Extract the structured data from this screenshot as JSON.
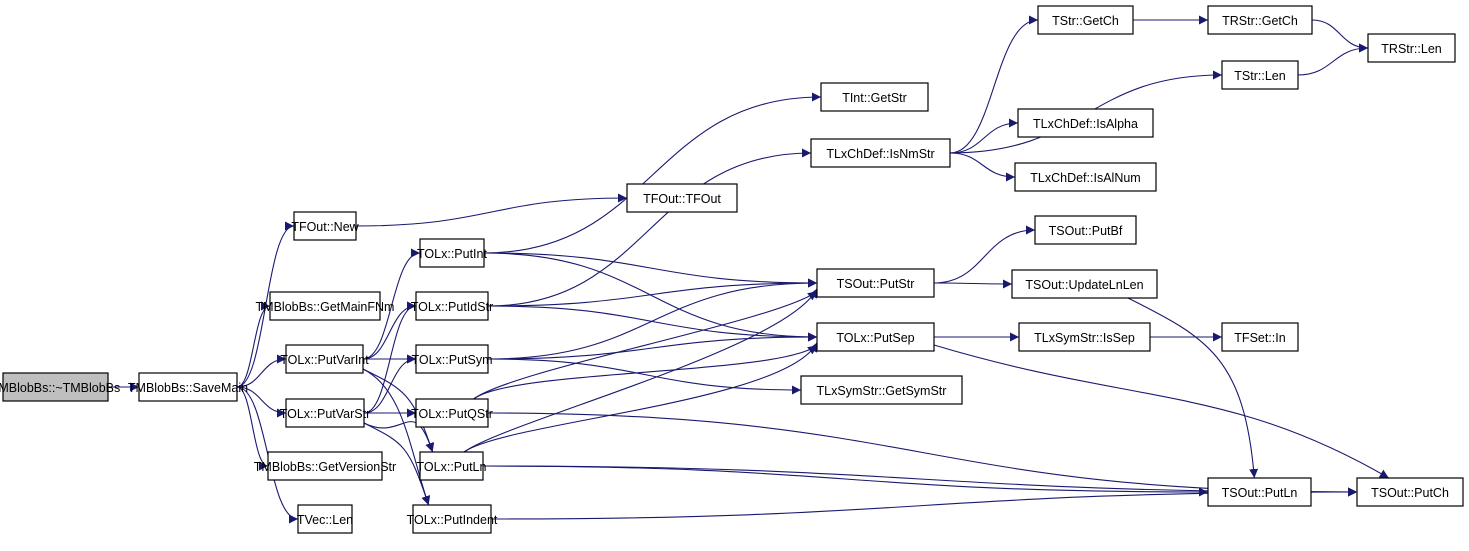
{
  "colors": {
    "edge": "#191970",
    "root_fill": "#bfbfbf",
    "node_fill": "#ffffff"
  },
  "nodes": [
    {
      "id": "n0",
      "label": "TMBlobBs::~TMBlobBs",
      "root": true
    },
    {
      "id": "n1",
      "label": "TMBlobBs::SaveMain"
    },
    {
      "id": "n2",
      "label": "TFOut::New"
    },
    {
      "id": "n3",
      "label": "TMBlobBs::GetMainFNm"
    },
    {
      "id": "n4",
      "label": "TOLx::PutVarInt"
    },
    {
      "id": "n5",
      "label": "TOLx::PutVarStr"
    },
    {
      "id": "n6",
      "label": "TMBlobBs::GetVersionStr"
    },
    {
      "id": "n7",
      "label": "TVec::Len"
    },
    {
      "id": "n8",
      "label": "TFOut::TFOut"
    },
    {
      "id": "n9",
      "label": "TOLx::PutInt"
    },
    {
      "id": "n10",
      "label": "TOLx::PutIdStr"
    },
    {
      "id": "n11",
      "label": "TOLx::PutSym"
    },
    {
      "id": "n12",
      "label": "TOLx::PutQStr"
    },
    {
      "id": "n13",
      "label": "TOLx::PutLn"
    },
    {
      "id": "n14",
      "label": "TOLx::PutIndent"
    },
    {
      "id": "n15",
      "label": "TInt::GetStr"
    },
    {
      "id": "n16",
      "label": "TLxChDef::IsNmStr"
    },
    {
      "id": "n17",
      "label": "TStr::GetCh"
    },
    {
      "id": "n18",
      "label": "TRStr::GetCh"
    },
    {
      "id": "n19",
      "label": "TRStr::Len"
    },
    {
      "id": "n20",
      "label": "TStr::Len"
    },
    {
      "id": "n21",
      "label": "TLxChDef::IsAlpha"
    },
    {
      "id": "n22",
      "label": "TLxChDef::IsAlNum"
    },
    {
      "id": "n23",
      "label": "TSOut::PutBf"
    },
    {
      "id": "n24",
      "label": "TSOut::PutStr"
    },
    {
      "id": "n25",
      "label": "TSOut::UpdateLnLen"
    },
    {
      "id": "n26",
      "label": "TOLx::PutSep"
    },
    {
      "id": "n27",
      "label": "TLxSymStr::IsSep"
    },
    {
      "id": "n28",
      "label": "TFSet::In"
    },
    {
      "id": "n29",
      "label": "TLxSymStr::GetSymStr"
    },
    {
      "id": "n30",
      "label": "TSOut::PutLn"
    },
    {
      "id": "n31",
      "label": "TSOut::PutCh"
    }
  ],
  "edges": [
    [
      "n0",
      "n1"
    ],
    [
      "n1",
      "n2"
    ],
    [
      "n1",
      "n3"
    ],
    [
      "n1",
      "n4"
    ],
    [
      "n1",
      "n5"
    ],
    [
      "n1",
      "n6"
    ],
    [
      "n1",
      "n7"
    ],
    [
      "n2",
      "n8"
    ],
    [
      "n4",
      "n9"
    ],
    [
      "n4",
      "n10"
    ],
    [
      "n4",
      "n11"
    ],
    [
      "n4",
      "n13"
    ],
    [
      "n4",
      "n14"
    ],
    [
      "n5",
      "n10"
    ],
    [
      "n5",
      "n11"
    ],
    [
      "n5",
      "n12"
    ],
    [
      "n5",
      "n13"
    ],
    [
      "n5",
      "n14"
    ],
    [
      "n9",
      "n15"
    ],
    [
      "n9",
      "n24"
    ],
    [
      "n9",
      "n26"
    ],
    [
      "n10",
      "n16"
    ],
    [
      "n10",
      "n24"
    ],
    [
      "n10",
      "n26"
    ],
    [
      "n11",
      "n24"
    ],
    [
      "n11",
      "n26"
    ],
    [
      "n11",
      "n29"
    ],
    [
      "n12",
      "n24"
    ],
    [
      "n12",
      "n26"
    ],
    [
      "n12",
      "n31"
    ],
    [
      "n13",
      "n24"
    ],
    [
      "n13",
      "n26"
    ],
    [
      "n13",
      "n30"
    ],
    [
      "n13",
      "n31"
    ],
    [
      "n14",
      "n31"
    ],
    [
      "n16",
      "n17"
    ],
    [
      "n16",
      "n20"
    ],
    [
      "n16",
      "n21"
    ],
    [
      "n16",
      "n22"
    ],
    [
      "n17",
      "n18"
    ],
    [
      "n18",
      "n19"
    ],
    [
      "n20",
      "n19"
    ],
    [
      "n24",
      "n23"
    ],
    [
      "n24",
      "n25"
    ],
    [
      "n25",
      "n30"
    ],
    [
      "n26",
      "n27"
    ],
    [
      "n26",
      "n31"
    ],
    [
      "n27",
      "n28"
    ],
    [
      "n30",
      "n31"
    ]
  ]
}
